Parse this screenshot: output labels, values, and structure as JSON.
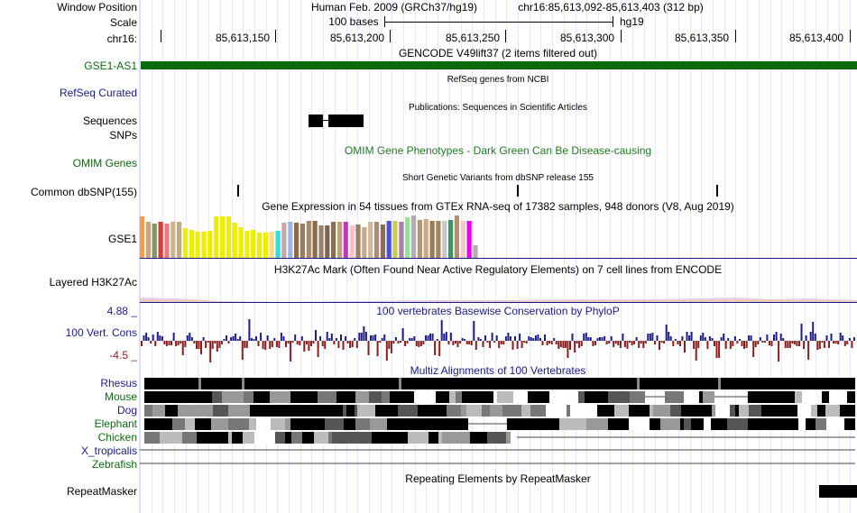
{
  "header": {
    "window_position_label": "Window Position",
    "assembly": "Human Feb. 2009 (GRCh37/hg19)",
    "position": "chr16:85,613,092-85,613,403 (312 bp)",
    "scale_label": "Scale",
    "scale_text": "100 bases",
    "db": "hg19",
    "chrom_label": "chr16:",
    "ticks": [
      "85,613,150",
      "85,613,200",
      "85,613,250",
      "85,613,300",
      "85,613,350",
      "85,613,400"
    ]
  },
  "tracks": {
    "gencode": {
      "title": "GENCODE V49lift37 (2 items filtered out)",
      "label": "GSE1-AS1",
      "color": "#0b6b0b"
    },
    "refseq": {
      "title": "RefSeq genes from NCBI",
      "label": "RefSeq Curated",
      "color": "#1a1a8c"
    },
    "pubs": {
      "title": "Publications: Sequences in Scientific Articles",
      "label1": "Sequences",
      "label2": "SNPs"
    },
    "omim": {
      "title": "OMIM Gene Phenotypes - Dark Green Can Be Disease-causing",
      "label": "OMIM Genes",
      "color": "#1f7a1f"
    },
    "dbsnp": {
      "title": "Short Genetic Variants from dbSNP release 155",
      "label": "Common dbSNP(155)"
    },
    "gtex": {
      "title": "Gene Expression in 54 tissues from GTEx RNA-seq of 17382 samples, 948 donors (V8, Aug 2019)",
      "label": "GSE1",
      "levels": [
        0.96,
        0.84,
        0.8,
        0.84,
        0.8,
        0.84,
        0.84,
        0.68,
        0.64,
        0.61,
        0.61,
        0.62,
        0.96,
        0.96,
        0.96,
        0.81,
        0.7,
        0.62,
        0.64,
        0.58,
        0.59,
        0.6,
        0.63,
        0.81,
        0.84,
        0.82,
        0.8,
        0.85,
        0.85,
        0.76,
        0.76,
        0.84,
        0.84,
        0.84,
        0.76,
        0.78,
        0.7,
        0.84,
        0.84,
        0.77,
        0.86,
        0.86,
        0.84,
        0.94,
        0.98,
        0.88,
        0.9,
        0.86,
        0.86,
        0.86,
        0.88,
        0.98,
        0.86,
        0.86,
        0.3
      ],
      "colors": [
        "#ff9f3a",
        "#c9a77e",
        "#7c9a5e",
        "#d23d3d",
        "#f07878",
        "#d2b48c",
        "#c4a988",
        "#eeee00",
        "#eeee00",
        "#eeee00",
        "#eeee00",
        "#eeee00",
        "#eeee00",
        "#eeee00",
        "#eeee00",
        "#eeee00",
        "#eeee00",
        "#eeee00",
        "#eeee00",
        "#eeee00",
        "#eeee00",
        "#ffd880",
        "#33dddd",
        "#c7a5a5",
        "#99b8e6",
        "#8c6b4a",
        "#9c7b5a",
        "#a68a6a",
        "#8c6b4a",
        "#9b8066",
        "#7f6650",
        "#8b6d4f",
        "#bfa07c",
        "#cc33cc",
        "#ffc0cb",
        "#9a7f63",
        "#c4aa88",
        "#cdb89a",
        "#a98d6f",
        "#8a6f55",
        "#4a50dd",
        "#cccc55",
        "#aa80aa",
        "#8ce68c",
        "#b0b0b0",
        "#b8946a",
        "#cfa880",
        "#9a7a5a",
        "#a68462",
        "#c8c8c8",
        "#339966",
        "#b09070",
        "#f2c8c8",
        "#ee00ee",
        "#b0b0b0"
      ]
    },
    "h3k27ac": {
      "title": "H3K27Ac Mark (Often Found Near Active Regulatory Elements) on 7 cell lines from ENCODE",
      "label": "Layered H3K27Ac"
    },
    "phylop": {
      "title": "100 vertebrates Basewise Conservation by PhyloP",
      "label": "100 Vert. Cons",
      "max": "4.88 _",
      "min": "-4.5 _",
      "pos_color": "#1d1d8c",
      "neg_color": "#8c1d1d"
    },
    "multiz": {
      "title": "Multiz Alignments of 100 Vertebrates",
      "species": [
        {
          "name": "Rhesus",
          "color": "#1a1a8c"
        },
        {
          "name": "Mouse",
          "color": "#0b6b0b"
        },
        {
          "name": "Dog",
          "color": "#1a1a8c"
        },
        {
          "name": "Elephant",
          "color": "#0b6b0b"
        },
        {
          "name": "Chicken",
          "color": "#0b6b0b"
        },
        {
          "name": "X_tropicalis",
          "color": "#1a1a8c"
        },
        {
          "name": "Zebrafish",
          "color": "#0b6b0b"
        }
      ]
    },
    "rmsk": {
      "title": "Repeating Elements by RepeatMasker",
      "label": "RepeatMasker"
    }
  }
}
